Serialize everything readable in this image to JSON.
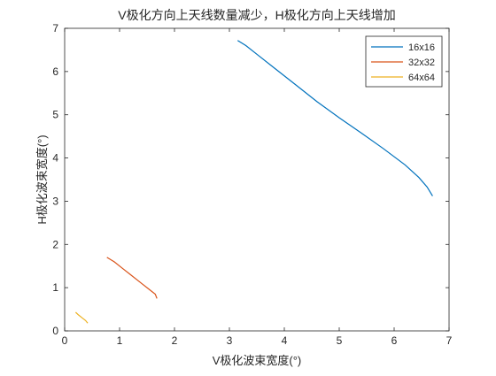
{
  "chart_data": {
    "type": "line",
    "title": "V极化方向上天线数量减少，H极化方向上天线增加",
    "xlabel": "V极化波束宽度(°)",
    "ylabel": "H极化波束宽度(°)",
    "xlim": [
      0,
      7
    ],
    "ylim": [
      0,
      7
    ],
    "xticks": [
      "0",
      "1",
      "2",
      "3",
      "4",
      "5",
      "6",
      "7"
    ],
    "yticks": [
      "0",
      "1",
      "2",
      "3",
      "4",
      "5",
      "6",
      "7"
    ],
    "grid": false,
    "legend_position": "top-right",
    "series": [
      {
        "name": "16x16",
        "color": "#0072BD",
        "x": [
          3.15,
          3.3,
          3.5,
          3.8,
          4.2,
          4.6,
          5.0,
          5.4,
          5.8,
          6.2,
          6.45,
          6.6,
          6.7
        ],
        "y": [
          6.72,
          6.6,
          6.4,
          6.1,
          5.7,
          5.3,
          4.93,
          4.58,
          4.22,
          3.84,
          3.55,
          3.33,
          3.12
        ]
      },
      {
        "name": "32x32",
        "color": "#D95319",
        "x": [
          0.77,
          0.9,
          1.05,
          1.2,
          1.4,
          1.55,
          1.65,
          1.68
        ],
        "y": [
          1.7,
          1.6,
          1.45,
          1.3,
          1.1,
          0.95,
          0.85,
          0.75
        ]
      },
      {
        "name": "64x64",
        "color": "#EDB120",
        "x": [
          0.2,
          0.25,
          0.32,
          0.38,
          0.42
        ],
        "y": [
          0.43,
          0.37,
          0.3,
          0.24,
          0.18
        ]
      }
    ]
  }
}
